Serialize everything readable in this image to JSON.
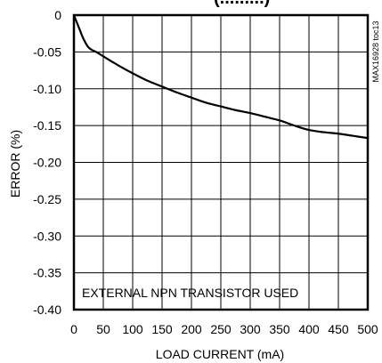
{
  "chart_data": {
    "type": "line",
    "title_fragment": "(... .......)",
    "xlabel": "LOAD CURRENT (mA)",
    "ylabel": "ERROR (%)",
    "xlim": [
      0,
      500
    ],
    "ylim": [
      -0.4,
      0
    ],
    "x_ticks": [
      "0",
      "50",
      "100",
      "150",
      "200",
      "250",
      "300",
      "350",
      "400",
      "450",
      "500"
    ],
    "y_ticks": [
      "0",
      "-0.05",
      "-0.10",
      "-0.15",
      "-0.20",
      "-0.25",
      "-0.30",
      "-0.35",
      "-0.40"
    ],
    "grid": true,
    "annotation": "EXTERNAL NPN TRANSISTOR USED",
    "figure_code": "MAX16928 toc13",
    "series": [
      {
        "color": "#000000",
        "x": [
          0,
          5,
          10,
          15,
          20,
          25,
          30,
          40,
          50,
          75,
          100,
          125,
          150,
          175,
          200,
          225,
          250,
          275,
          300,
          325,
          350,
          375,
          400,
          425,
          450,
          475,
          500
        ],
        "y": [
          0,
          -0.01,
          -0.02,
          -0.03,
          -0.038,
          -0.044,
          -0.047,
          -0.051,
          -0.056,
          -0.068,
          -0.079,
          -0.089,
          -0.097,
          -0.105,
          -0.112,
          -0.119,
          -0.124,
          -0.129,
          -0.133,
          -0.138,
          -0.143,
          -0.15,
          -0.156,
          -0.159,
          -0.161,
          -0.164,
          -0.167
        ]
      }
    ]
  }
}
